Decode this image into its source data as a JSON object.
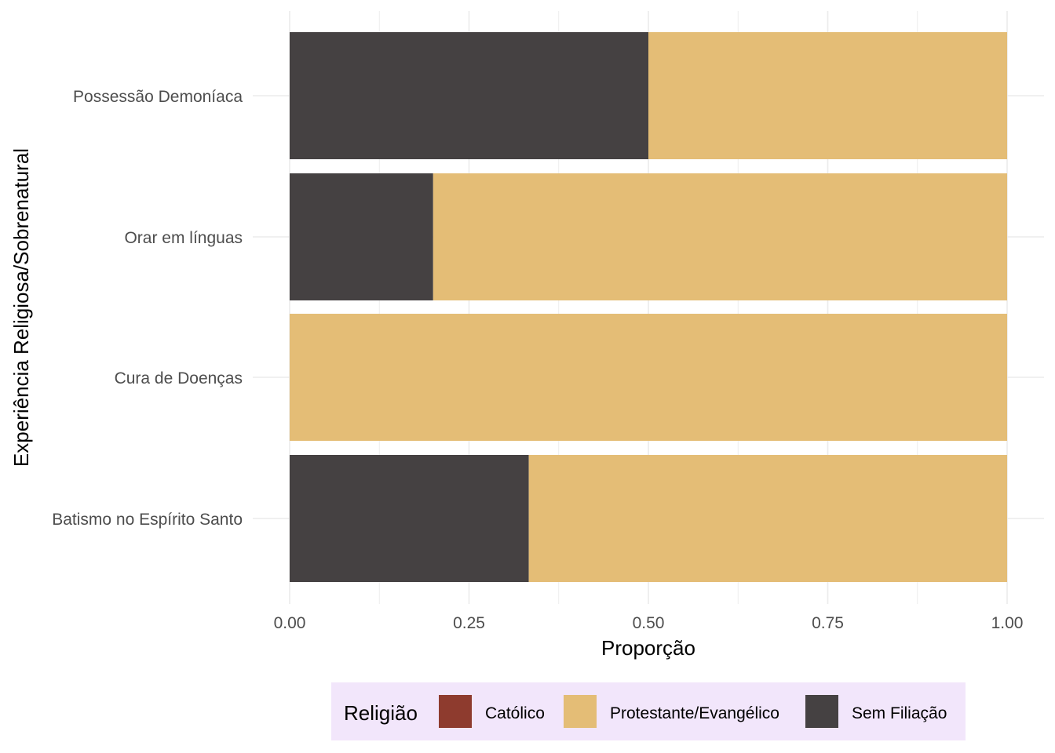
{
  "chart_data": {
    "type": "bar",
    "orientation": "horizontal",
    "stacked": "proportion",
    "xlabel": "Proporção",
    "ylabel": "Experiência Religiosa/Sobrenatural",
    "xlim": [
      0,
      1
    ],
    "x_ticks": [
      "0.00",
      "0.25",
      "0.50",
      "0.75",
      "1.00"
    ],
    "x_tick_values": [
      0,
      0.25,
      0.5,
      0.75,
      1
    ],
    "categories": [
      "Possessão Demoníaca",
      "Orar em línguas",
      "Cura de Doenças",
      "Batismo no Espírito Santo"
    ],
    "series": [
      {
        "name": "Sem Filiação",
        "color": "#454142",
        "values": [
          0.5,
          0.2,
          0,
          0.3333
        ]
      },
      {
        "name": "Protestante/Evangélico",
        "color": "#E4BD76",
        "values": [
          0.5,
          0.8,
          1,
          0.6667
        ]
      },
      {
        "name": "Católico",
        "color": "#8E3B2E",
        "values": [
          0,
          0,
          0,
          0
        ]
      }
    ],
    "grid": true,
    "legend": {
      "title": "Religião",
      "position": "bottom",
      "background": "#F2E6FB",
      "entries": [
        {
          "label": "Católico",
          "color": "#8E3B2E"
        },
        {
          "label": "Protestante/Evangélico",
          "color": "#E4BD76"
        },
        {
          "label": "Sem Filiação",
          "color": "#454142"
        }
      ]
    }
  }
}
